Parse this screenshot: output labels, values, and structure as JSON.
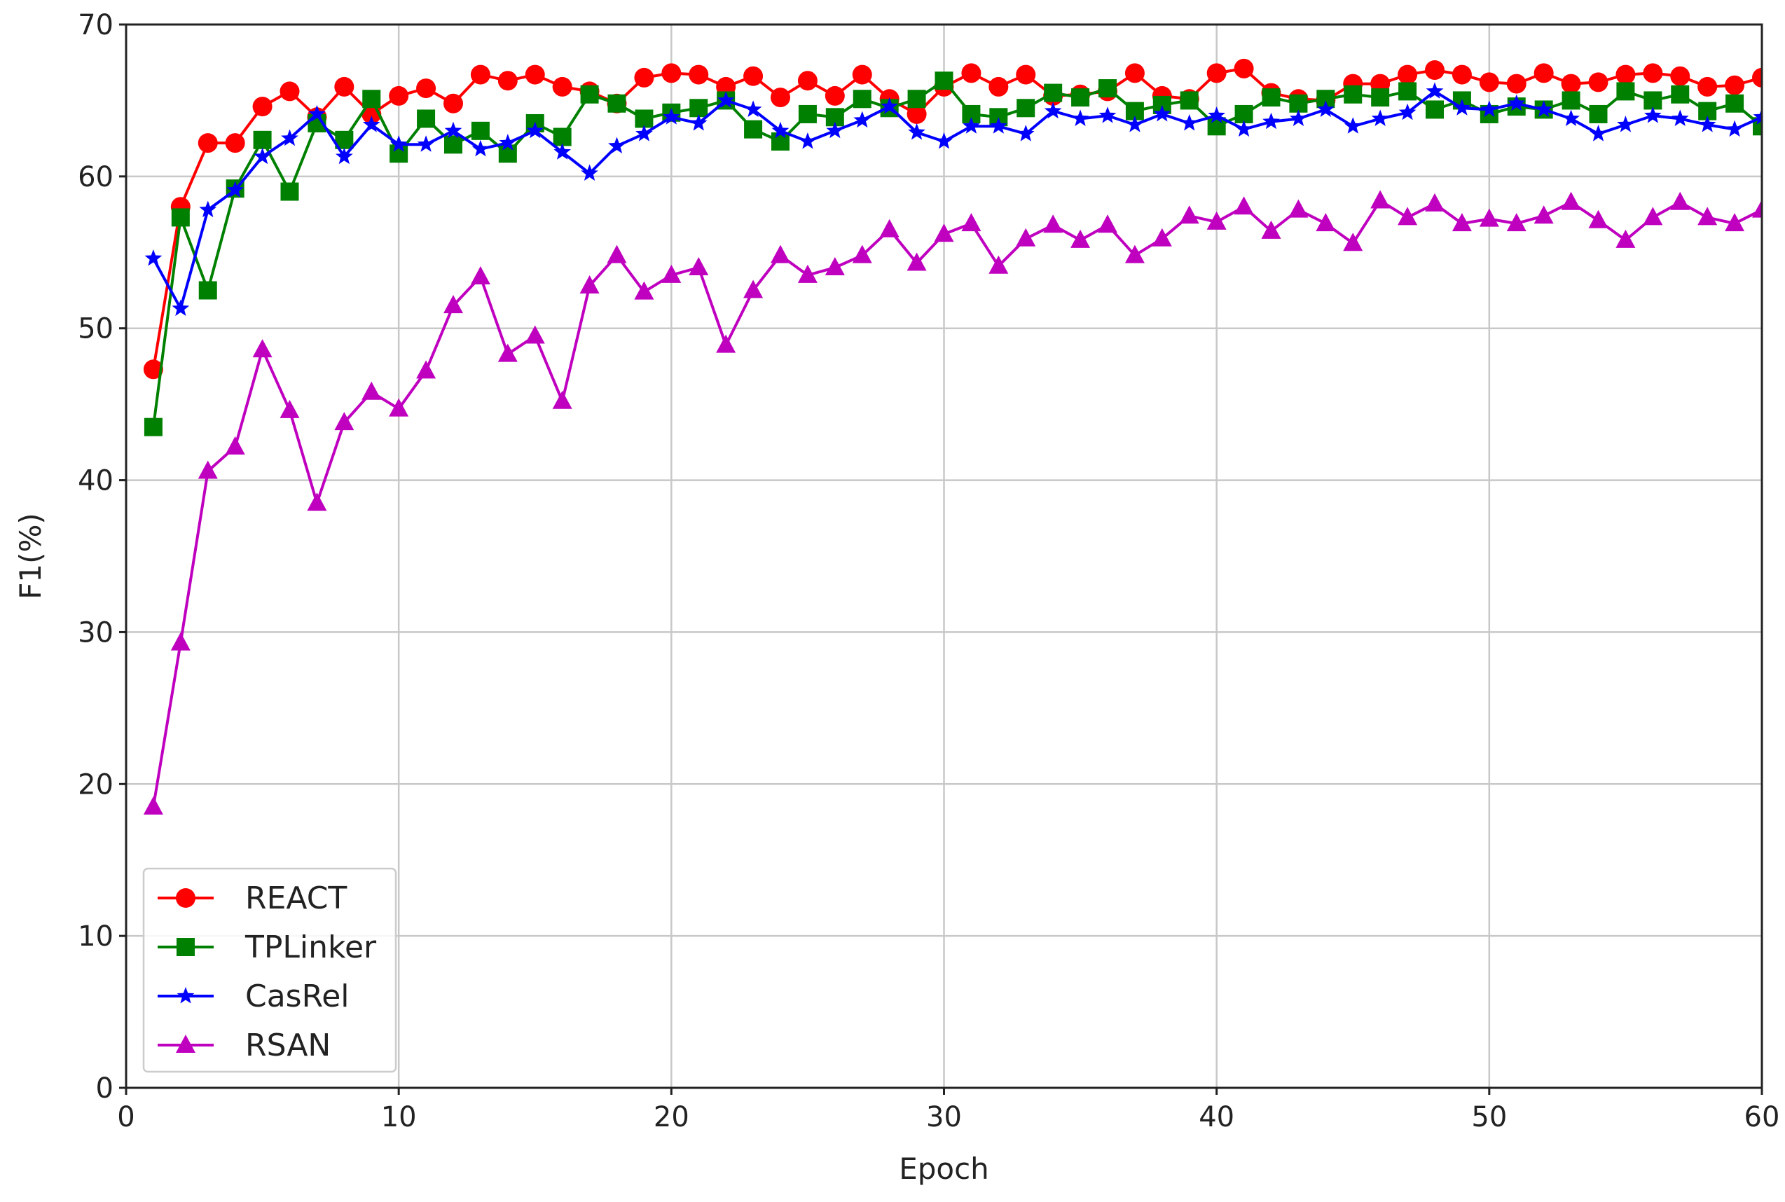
{
  "chart_data": {
    "type": "line",
    "title": "",
    "xlabel": "Epoch",
    "ylabel": "F1(%)",
    "xlim": [
      0,
      60
    ],
    "ylim": [
      0,
      70
    ],
    "xticks": [
      "0",
      "10",
      "20",
      "30",
      "40",
      "50",
      "60"
    ],
    "yticks": [
      "0",
      "10",
      "20",
      "30",
      "40",
      "50",
      "60",
      "70"
    ],
    "grid": true,
    "legend_position": "lower-left",
    "x": [
      1,
      2,
      3,
      4,
      5,
      6,
      7,
      8,
      9,
      10,
      11,
      12,
      13,
      14,
      15,
      16,
      17,
      18,
      19,
      20,
      21,
      22,
      23,
      24,
      25,
      26,
      27,
      28,
      29,
      30,
      31,
      32,
      33,
      34,
      35,
      36,
      37,
      38,
      39,
      40,
      41,
      42,
      43,
      44,
      45,
      46,
      47,
      48,
      49,
      50,
      51,
      52,
      53,
      54,
      55,
      56,
      57,
      58,
      59,
      60
    ],
    "series": [
      {
        "name": "REACT",
        "color": "#ff0000",
        "marker": "circle",
        "values": [
          47.3,
          58.0,
          62.2,
          62.2,
          64.6,
          65.6,
          63.9,
          65.9,
          64.1,
          65.3,
          65.8,
          64.8,
          66.7,
          66.3,
          66.7,
          65.9,
          65.6,
          64.8,
          66.5,
          66.8,
          66.7,
          65.9,
          66.6,
          65.2,
          66.3,
          65.3,
          66.7,
          65.1,
          64.1,
          65.9,
          66.8,
          65.9,
          66.7,
          65.3,
          65.4,
          65.6,
          66.8,
          65.3,
          65.1,
          66.8,
          67.1,
          65.5,
          65.1,
          65.0,
          66.1,
          66.1,
          66.7,
          67.0,
          66.7,
          66.2,
          66.1,
          66.8,
          66.1,
          66.2,
          66.7,
          66.8,
          66.6,
          65.9,
          66.0,
          66.5
        ]
      },
      {
        "name": "TPLinker",
        "color": "#008000",
        "marker": "square",
        "values": [
          43.5,
          57.3,
          52.5,
          59.2,
          62.4,
          59.0,
          63.5,
          62.4,
          65.1,
          61.5,
          63.8,
          62.1,
          63.0,
          61.5,
          63.5,
          62.6,
          65.4,
          64.8,
          63.8,
          64.2,
          64.5,
          65.0,
          63.1,
          62.3,
          64.1,
          63.9,
          65.1,
          64.5,
          65.1,
          66.3,
          64.1,
          63.9,
          64.5,
          65.5,
          65.2,
          65.8,
          64.3,
          64.7,
          65.0,
          63.3,
          64.1,
          65.2,
          64.8,
          65.1,
          65.4,
          65.2,
          65.6,
          64.4,
          65.0,
          64.1,
          64.6,
          64.4,
          65.0,
          64.1,
          65.6,
          65.0,
          65.4,
          64.3,
          64.8,
          63.3
        ]
      },
      {
        "name": "CasRel",
        "color": "#0000ff",
        "marker": "star",
        "values": [
          54.6,
          51.3,
          57.8,
          59.1,
          61.3,
          62.5,
          64.1,
          61.3,
          63.4,
          62.1,
          62.1,
          63.0,
          61.8,
          62.2,
          63.0,
          61.6,
          60.2,
          62.0,
          62.8,
          63.9,
          63.5,
          65.0,
          64.4,
          63.0,
          62.3,
          63.0,
          63.7,
          64.6,
          62.9,
          62.3,
          63.3,
          63.3,
          62.8,
          64.3,
          63.8,
          64.0,
          63.4,
          64.1,
          63.5,
          64.0,
          63.1,
          63.6,
          63.8,
          64.4,
          63.3,
          63.8,
          64.2,
          65.6,
          64.5,
          64.4,
          64.8,
          64.4,
          63.8,
          62.8,
          63.4,
          64.0,
          63.8,
          63.4,
          63.1,
          63.9
        ]
      },
      {
        "name": "RSAN",
        "color": "#bf00bf",
        "marker": "triangle",
        "values": [
          18.5,
          29.3,
          40.6,
          42.2,
          48.6,
          44.6,
          38.5,
          43.8,
          45.8,
          44.7,
          47.2,
          51.5,
          53.4,
          48.3,
          49.5,
          45.2,
          52.8,
          54.8,
          52.4,
          53.5,
          54.0,
          48.9,
          52.5,
          54.8,
          53.5,
          54.0,
          54.8,
          56.5,
          54.3,
          56.2,
          56.9,
          54.1,
          55.9,
          56.8,
          55.8,
          56.8,
          54.8,
          55.9,
          57.4,
          57.0,
          58.0,
          56.4,
          57.8,
          56.9,
          55.6,
          58.4,
          57.3,
          58.2,
          56.9,
          57.2,
          56.9,
          57.4,
          58.3,
          57.1,
          55.8,
          57.3,
          58.3,
          57.3,
          56.9,
          57.8
        ]
      }
    ]
  }
}
